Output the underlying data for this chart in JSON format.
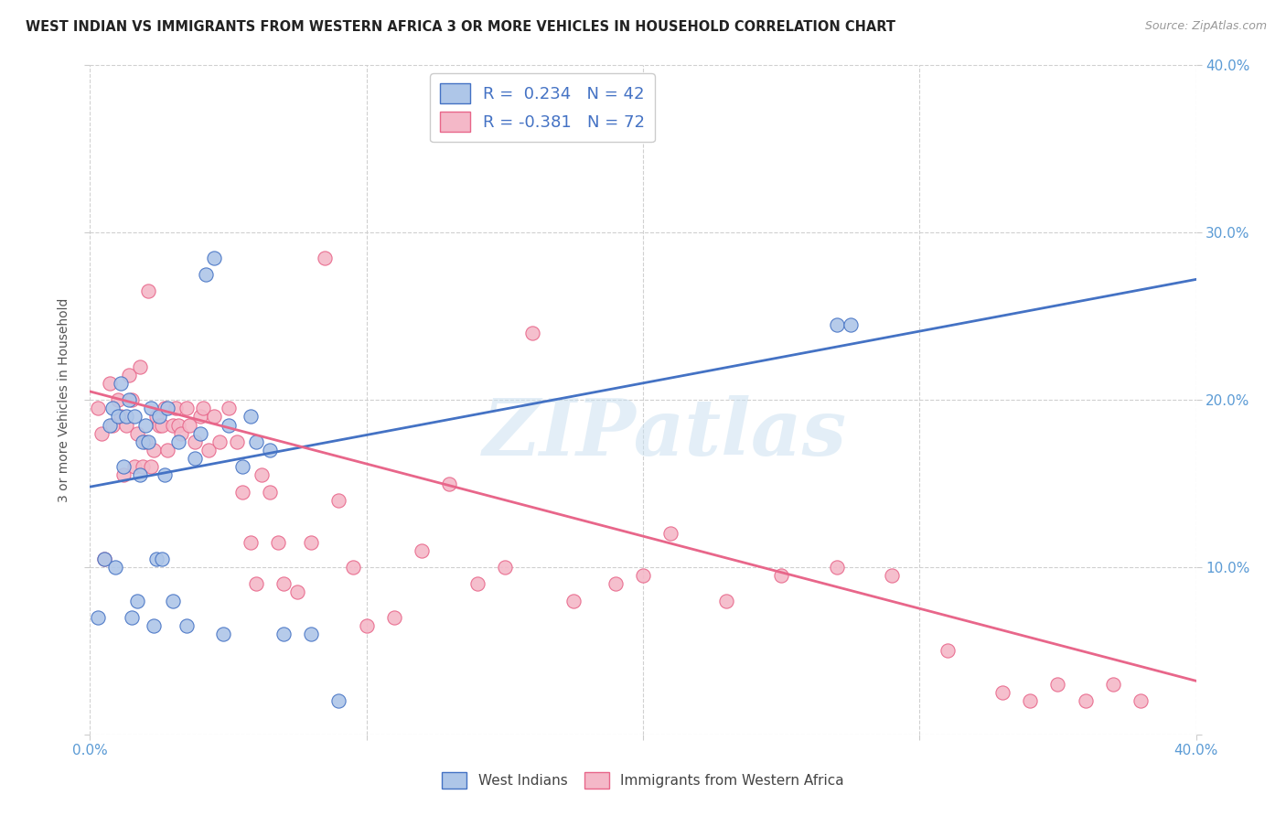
{
  "title": "WEST INDIAN VS IMMIGRANTS FROM WESTERN AFRICA 3 OR MORE VEHICLES IN HOUSEHOLD CORRELATION CHART",
  "source": "Source: ZipAtlas.com",
  "ylabel": "3 or more Vehicles in Household",
  "xlim": [
    0.0,
    0.4
  ],
  "ylim": [
    0.0,
    0.4
  ],
  "xtick_vals": [
    0.0,
    0.1,
    0.2,
    0.3,
    0.4
  ],
  "ytick_vals": [
    0.0,
    0.1,
    0.2,
    0.3,
    0.4
  ],
  "right_ytick_labels": [
    "",
    "10.0%",
    "20.0%",
    "30.0%",
    "40.0%"
  ],
  "bottom_xtick_labels": [
    "0.0%",
    "",
    "",
    "",
    "40.0%"
  ],
  "blue_R": 0.234,
  "blue_N": 42,
  "pink_R": -0.381,
  "pink_N": 72,
  "blue_color": "#aec6e8",
  "pink_color": "#f4b8c8",
  "blue_line_color": "#4472c4",
  "pink_line_color": "#e8668a",
  "legend_label_blue": "West Indians",
  "legend_label_pink": "Immigrants from Western Africa",
  "watermark": "ZIPatlas",
  "blue_line_start_y": 0.148,
  "blue_line_end_y": 0.272,
  "pink_line_start_y": 0.205,
  "pink_line_end_y": 0.032,
  "blue_scatter_x": [
    0.003,
    0.005,
    0.007,
    0.008,
    0.009,
    0.01,
    0.011,
    0.012,
    0.013,
    0.014,
    0.015,
    0.016,
    0.017,
    0.018,
    0.019,
    0.02,
    0.021,
    0.022,
    0.023,
    0.024,
    0.025,
    0.026,
    0.027,
    0.028,
    0.03,
    0.032,
    0.035,
    0.038,
    0.04,
    0.042,
    0.045,
    0.048,
    0.05,
    0.055,
    0.058,
    0.06,
    0.065,
    0.07,
    0.08,
    0.09,
    0.27,
    0.275
  ],
  "blue_scatter_y": [
    0.07,
    0.105,
    0.185,
    0.195,
    0.1,
    0.19,
    0.21,
    0.16,
    0.19,
    0.2,
    0.07,
    0.19,
    0.08,
    0.155,
    0.175,
    0.185,
    0.175,
    0.195,
    0.065,
    0.105,
    0.19,
    0.105,
    0.155,
    0.195,
    0.08,
    0.175,
    0.065,
    0.165,
    0.18,
    0.275,
    0.285,
    0.06,
    0.185,
    0.16,
    0.19,
    0.175,
    0.17,
    0.06,
    0.06,
    0.02,
    0.245,
    0.245
  ],
  "pink_scatter_x": [
    0.003,
    0.004,
    0.005,
    0.007,
    0.008,
    0.01,
    0.011,
    0.012,
    0.013,
    0.014,
    0.015,
    0.016,
    0.017,
    0.018,
    0.019,
    0.02,
    0.021,
    0.022,
    0.023,
    0.024,
    0.025,
    0.026,
    0.027,
    0.028,
    0.03,
    0.031,
    0.032,
    0.033,
    0.035,
    0.036,
    0.038,
    0.04,
    0.041,
    0.043,
    0.045,
    0.047,
    0.05,
    0.053,
    0.055,
    0.058,
    0.06,
    0.062,
    0.065,
    0.068,
    0.07,
    0.075,
    0.08,
    0.085,
    0.09,
    0.095,
    0.1,
    0.11,
    0.12,
    0.13,
    0.14,
    0.15,
    0.16,
    0.175,
    0.19,
    0.2,
    0.21,
    0.23,
    0.25,
    0.27,
    0.29,
    0.31,
    0.33,
    0.34,
    0.35,
    0.36,
    0.37,
    0.38
  ],
  "pink_scatter_y": [
    0.195,
    0.18,
    0.105,
    0.21,
    0.185,
    0.2,
    0.19,
    0.155,
    0.185,
    0.215,
    0.2,
    0.16,
    0.18,
    0.22,
    0.16,
    0.175,
    0.265,
    0.16,
    0.17,
    0.19,
    0.185,
    0.185,
    0.195,
    0.17,
    0.185,
    0.195,
    0.185,
    0.18,
    0.195,
    0.185,
    0.175,
    0.19,
    0.195,
    0.17,
    0.19,
    0.175,
    0.195,
    0.175,
    0.145,
    0.115,
    0.09,
    0.155,
    0.145,
    0.115,
    0.09,
    0.085,
    0.115,
    0.285,
    0.14,
    0.1,
    0.065,
    0.07,
    0.11,
    0.15,
    0.09,
    0.1,
    0.24,
    0.08,
    0.09,
    0.095,
    0.12,
    0.08,
    0.095,
    0.1,
    0.095,
    0.05,
    0.025,
    0.02,
    0.03,
    0.02,
    0.03,
    0.02
  ]
}
